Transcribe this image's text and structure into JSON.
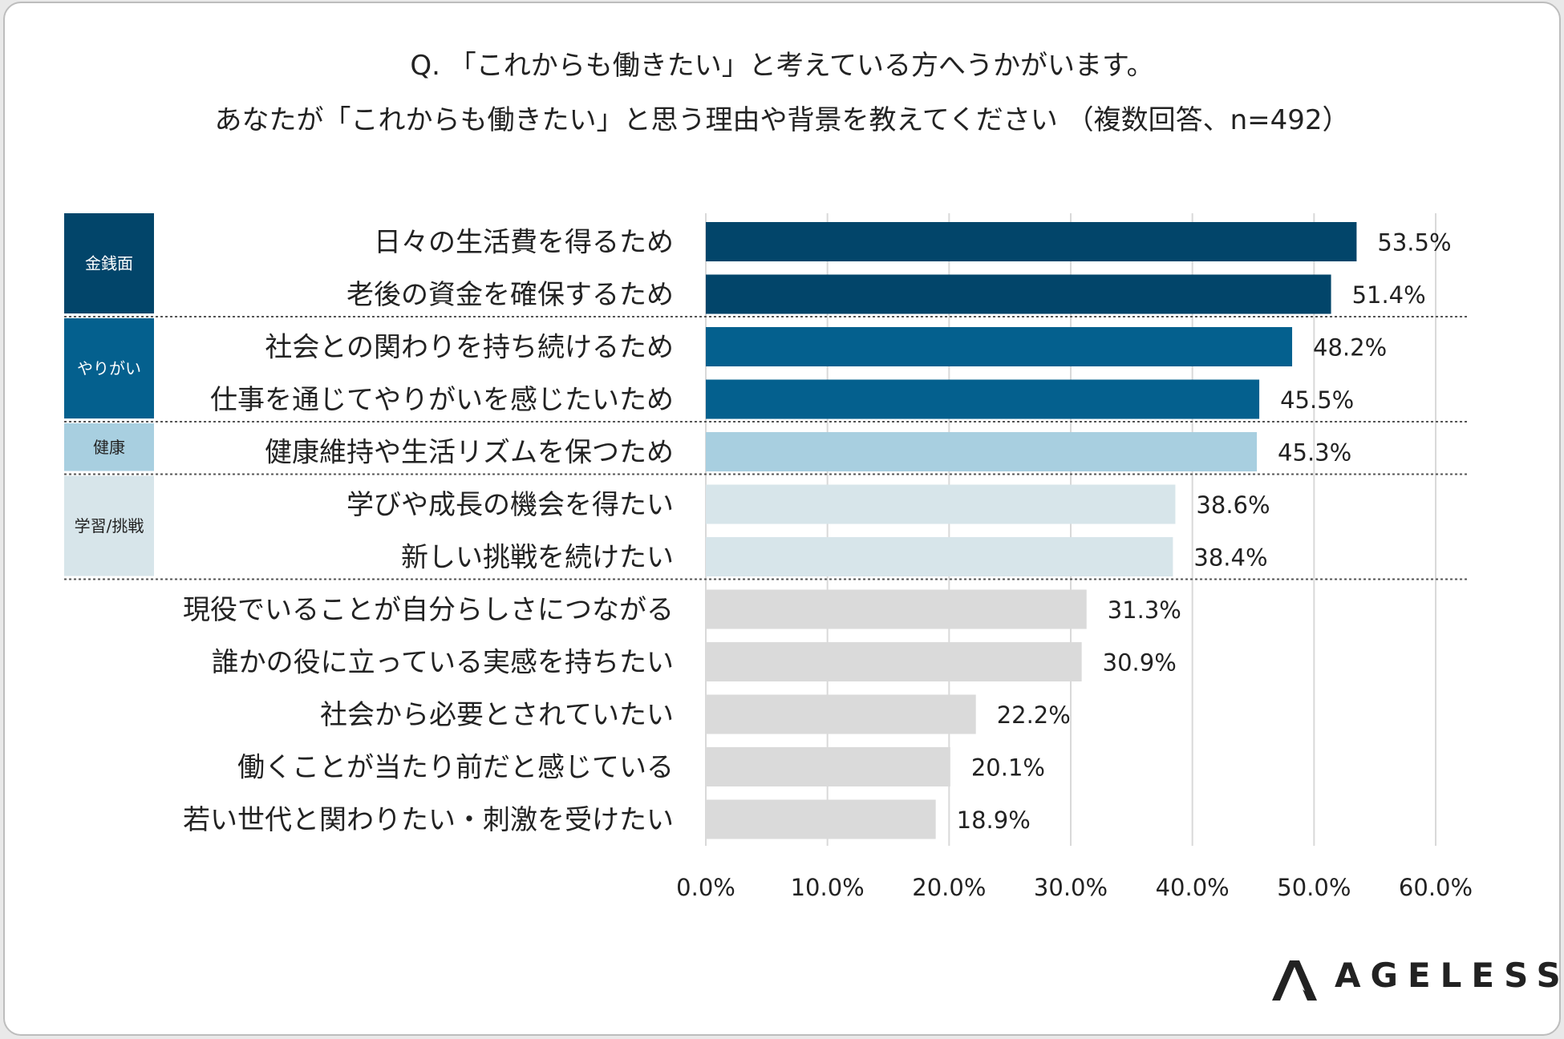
{
  "question": "Q. 「これからも働きたい」と考えている方へうかがいます。",
  "subtitle": "あなたが「これからも働きたい」と思う理由や背景を教えてください （複数回答、n=492）",
  "logo_text": "AGELESS",
  "colors": {
    "money": "#02456a",
    "purpose": "#04608e",
    "health": "#a8cfe0",
    "learning": "#d7e5ea",
    "other": "#dadada",
    "grid": "#d9d9d9",
    "text": "#222222"
  },
  "chart_data": {
    "type": "bar",
    "orientation": "horizontal",
    "categories": [
      "日々の生活費を得るため",
      "老後の資金を確保するため",
      "社会との関わりを持ち続けるため",
      "仕事を通じてやりがいを感じたいため",
      "健康維持や生活リズムを保つため",
      "学びや成長の機会を得たい",
      "新しい挑戦を続けたい",
      "現役でいることが自分らしさにつながる",
      "誰かの役に立っている実感を持ちたい",
      "社会から必要とされていたい",
      "働くことが当たり前だと感じている",
      "若い世代と関わりたい・刺激を受けたい"
    ],
    "values": [
      53.5,
      51.4,
      48.2,
      45.5,
      45.3,
      38.6,
      38.4,
      31.3,
      30.9,
      22.2,
      20.1,
      18.9
    ],
    "value_labels": [
      "53.5%",
      "51.4%",
      "48.2%",
      "45.5%",
      "45.3%",
      "38.6%",
      "38.4%",
      "31.3%",
      "30.9%",
      "22.2%",
      "20.1%",
      "18.9%"
    ],
    "bar_groups": [
      "money",
      "money",
      "purpose",
      "purpose",
      "health",
      "learning",
      "learning",
      "other",
      "other",
      "other",
      "other",
      "other"
    ],
    "groups": [
      {
        "key": "money",
        "label": "金銭面",
        "rows": [
          0,
          1
        ],
        "text_color": "#ffffff"
      },
      {
        "key": "purpose",
        "label": "やりがい",
        "rows": [
          2,
          3
        ],
        "text_color": "#ffffff"
      },
      {
        "key": "health",
        "label": "健康",
        "rows": [
          4,
          4
        ],
        "text_color": "#222222"
      },
      {
        "key": "learning",
        "label": "学習/挑戦",
        "rows": [
          5,
          6
        ],
        "text_color": "#222222"
      }
    ],
    "xlim": [
      0,
      60
    ],
    "xticks": [
      0,
      10,
      20,
      30,
      40,
      50,
      60
    ],
    "xtick_labels": [
      "0.0%",
      "10.0%",
      "20.0%",
      "30.0%",
      "40.0%",
      "50.0%",
      "60.0%"
    ],
    "grid": true,
    "legend": "none"
  }
}
